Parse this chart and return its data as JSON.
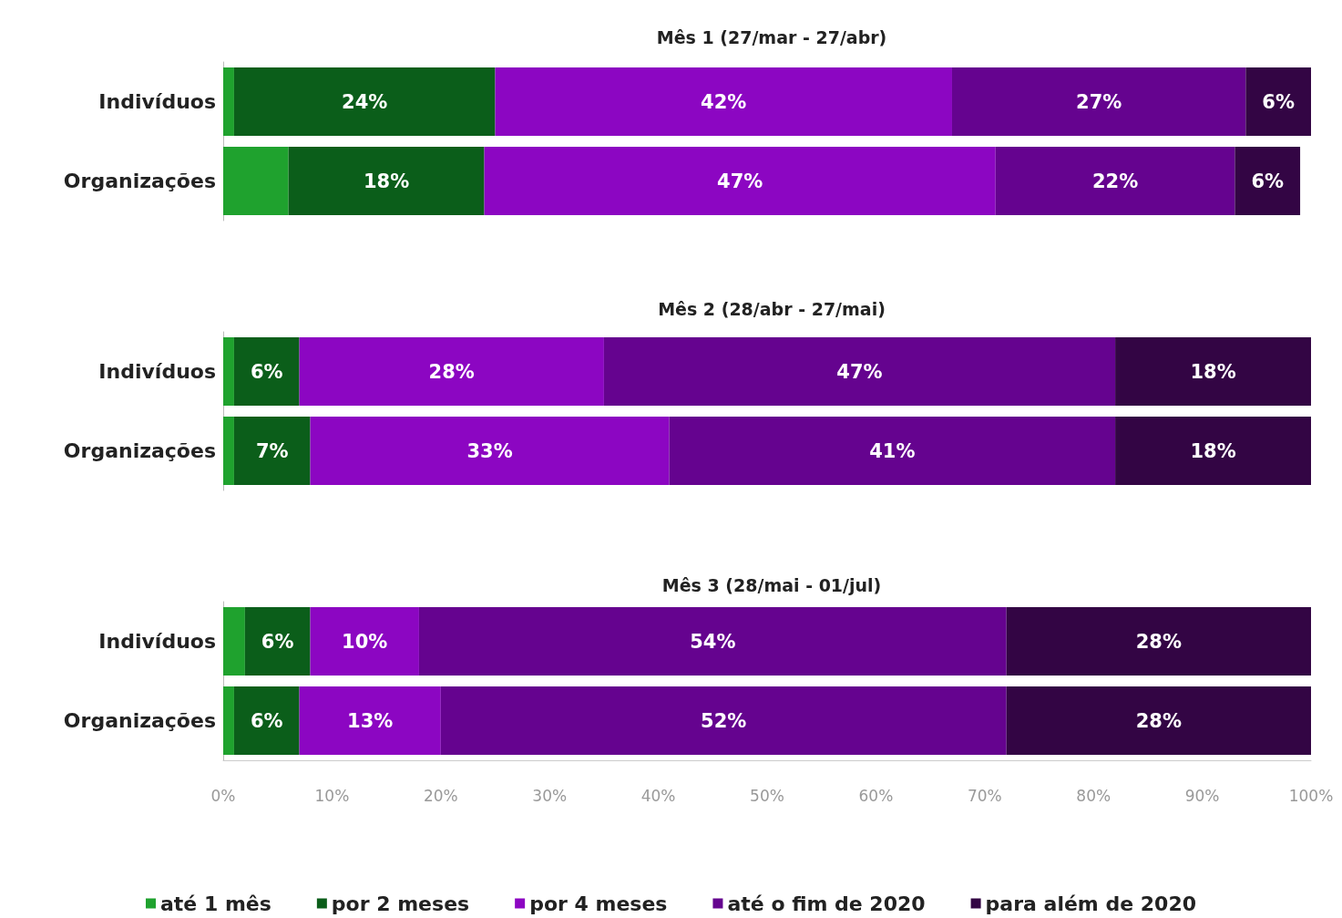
{
  "chart_data": [
    {
      "type": "bar",
      "orientation": "horizontal",
      "stacked": true,
      "title": "Mês 1 (27/mar - 27/abr)",
      "categories": [
        "Indivíduos",
        "Organizações"
      ],
      "xlim": [
        0,
        100
      ],
      "tick_labels": "y",
      "grid": false,
      "series": [
        {
          "color": "#1fa22e",
          "values": [
            1,
            6
          ],
          "value_labels": [
            null,
            null
          ]
        },
        {
          "color": "#0b5e1a",
          "values": [
            24,
            18
          ],
          "value_labels": [
            "24%",
            "18%"
          ]
        },
        {
          "color": "#8c06c2",
          "values": [
            42,
            47
          ],
          "value_labels": [
            "42%",
            "47%"
          ]
        },
        {
          "color": "#65038f",
          "values": [
            27,
            22
          ],
          "value_labels": [
            "27%",
            "22%"
          ]
        },
        {
          "color": "#330544",
          "values": [
            6,
            6
          ],
          "value_labels": [
            "6%",
            "6%"
          ]
        }
      ]
    },
    {
      "type": "bar",
      "orientation": "horizontal",
      "stacked": true,
      "title": "Mês 2 (28/abr - 27/mai)",
      "categories": [
        "Indivíduos",
        "Organizações"
      ],
      "xlim": [
        0,
        100
      ],
      "tick_labels": "y",
      "grid": false,
      "series": [
        {
          "color": "#1fa22e",
          "values": [
            1,
            1
          ],
          "value_labels": [
            null,
            null
          ]
        },
        {
          "color": "#0b5e1a",
          "values": [
            6,
            7
          ],
          "value_labels": [
            "6%",
            "7%"
          ]
        },
        {
          "color": "#8c06c2",
          "values": [
            28,
            33
          ],
          "value_labels": [
            "28%",
            "33%"
          ]
        },
        {
          "color": "#65038f",
          "values": [
            47,
            41
          ],
          "value_labels": [
            "47%",
            "41%"
          ]
        },
        {
          "color": "#330544",
          "values": [
            18,
            18
          ],
          "value_labels": [
            "18%",
            "18%"
          ]
        }
      ]
    },
    {
      "type": "bar",
      "orientation": "horizontal",
      "stacked": true,
      "title": "Mês 3 (28/mai - 01/jul)",
      "categories": [
        "Indivíduos",
        "Organizações"
      ],
      "xlim": [
        0,
        100
      ],
      "grid": false,
      "legend": "bottom",
      "xticks": [
        {
          "value": 0,
          "label": "0%"
        },
        {
          "value": 10,
          "label": "10%"
        },
        {
          "value": 20,
          "label": "20%"
        },
        {
          "value": 30,
          "label": "30%"
        },
        {
          "value": 40,
          "label": "40%"
        },
        {
          "value": 50,
          "label": "50%"
        },
        {
          "value": 60,
          "label": "60%"
        },
        {
          "value": 70,
          "label": "70%"
        },
        {
          "value": 80,
          "label": "80%"
        },
        {
          "value": 90,
          "label": "90%"
        },
        {
          "value": 100,
          "label": "100%"
        }
      ],
      "series": [
        {
          "name": "até 1 mês",
          "color": "#1fa22e",
          "values": [
            2,
            1
          ],
          "value_labels": [
            null,
            null
          ]
        },
        {
          "name": "por 2 meses",
          "color": "#0b5e1a",
          "values": [
            6,
            6
          ],
          "value_labels": [
            "6%",
            "6%"
          ]
        },
        {
          "name": "por 4 meses",
          "color": "#8c06c2",
          "values": [
            10,
            13
          ],
          "value_labels": [
            "10%",
            "13%"
          ]
        },
        {
          "name": "até o fim de 2020",
          "color": "#65038f",
          "values": [
            54,
            52
          ],
          "value_labels": [
            "54%",
            "52%"
          ]
        },
        {
          "name": "para além de 2020",
          "color": "#330544",
          "values": [
            28,
            28
          ],
          "value_labels": [
            "28%",
            "28%"
          ]
        }
      ]
    }
  ]
}
